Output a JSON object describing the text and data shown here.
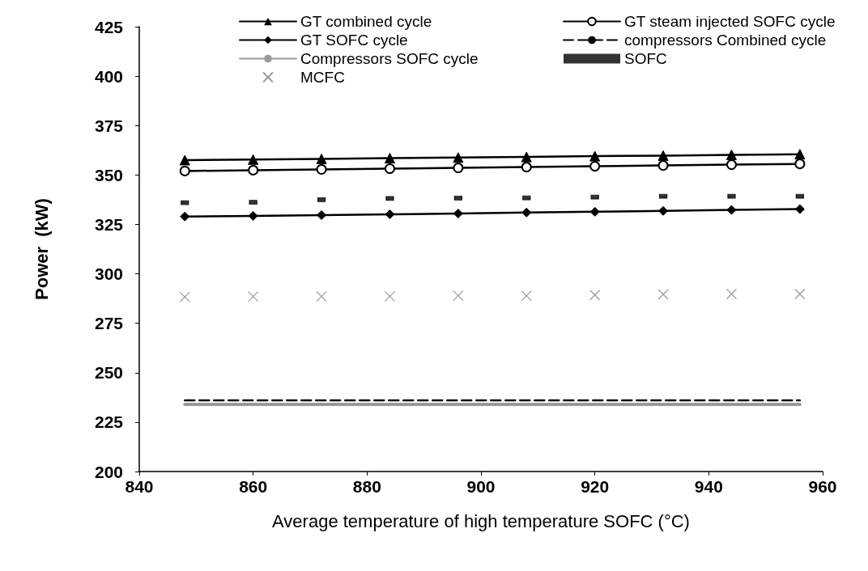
{
  "chart_data": {
    "type": "line",
    "xlabel": "Average temperature of high temperature SOFC (°C)",
    "ylabel": "Power  (kW)",
    "x": [
      848,
      860,
      872,
      884,
      896,
      908,
      920,
      932,
      944,
      956
    ],
    "xlim": [
      840,
      960
    ],
    "xticks": [
      840,
      860,
      880,
      900,
      920,
      940,
      960
    ],
    "ylim": [
      200,
      425
    ],
    "yticks": [
      200,
      225,
      250,
      275,
      300,
      325,
      350,
      375,
      400,
      425
    ],
    "grid": false,
    "legend": "top",
    "series": [
      {
        "name": "GT combined cycle",
        "color": "#000000",
        "marker": "triangle",
        "line_style": "solid",
        "values": [
          357.5,
          357.8,
          358.1,
          358.5,
          358.8,
          359.1,
          359.5,
          359.8,
          360.2,
          360.5
        ]
      },
      {
        "name": "GT steam injected SOFC cycle",
        "color": "#000000",
        "marker": "circle",
        "line_style": "solid",
        "values": [
          352,
          352.4,
          352.8,
          353.2,
          353.6,
          354,
          354.4,
          354.8,
          355.2,
          355.6
        ]
      },
      {
        "name": "GT SOFC cycle",
        "color": "#000000",
        "marker": "diamond",
        "line_style": "solid",
        "values": [
          329,
          329.3,
          329.7,
          330.1,
          330.5,
          331,
          331.4,
          331.8,
          332.3,
          332.7
        ]
      },
      {
        "name": "compressors Combined cycle",
        "color": "#000000",
        "marker": "none",
        "line_style": "dashed",
        "values": [
          236,
          236,
          236,
          236,
          236,
          236,
          236,
          236,
          236,
          236
        ]
      },
      {
        "name": "Compressors SOFC cycle",
        "color": "#999999",
        "marker": "none",
        "line_style": "solid",
        "values": [
          234,
          234,
          234,
          234,
          234,
          234,
          234,
          234,
          234,
          234
        ]
      },
      {
        "name": "SOFC",
        "type": "scatter",
        "color": "#000000",
        "marker": "square",
        "values": [
          336,
          336.2,
          337.5,
          338.1,
          338.3,
          338.4,
          338.8,
          339.2,
          339.2,
          339.2
        ]
      },
      {
        "name": "MCFC",
        "type": "scatter",
        "color": "#808080",
        "marker": "cross",
        "values": [
          288.3,
          288.5,
          288.5,
          288.6,
          288.9,
          288.9,
          289.3,
          289.6,
          289.8,
          289.8
        ]
      }
    ]
  }
}
